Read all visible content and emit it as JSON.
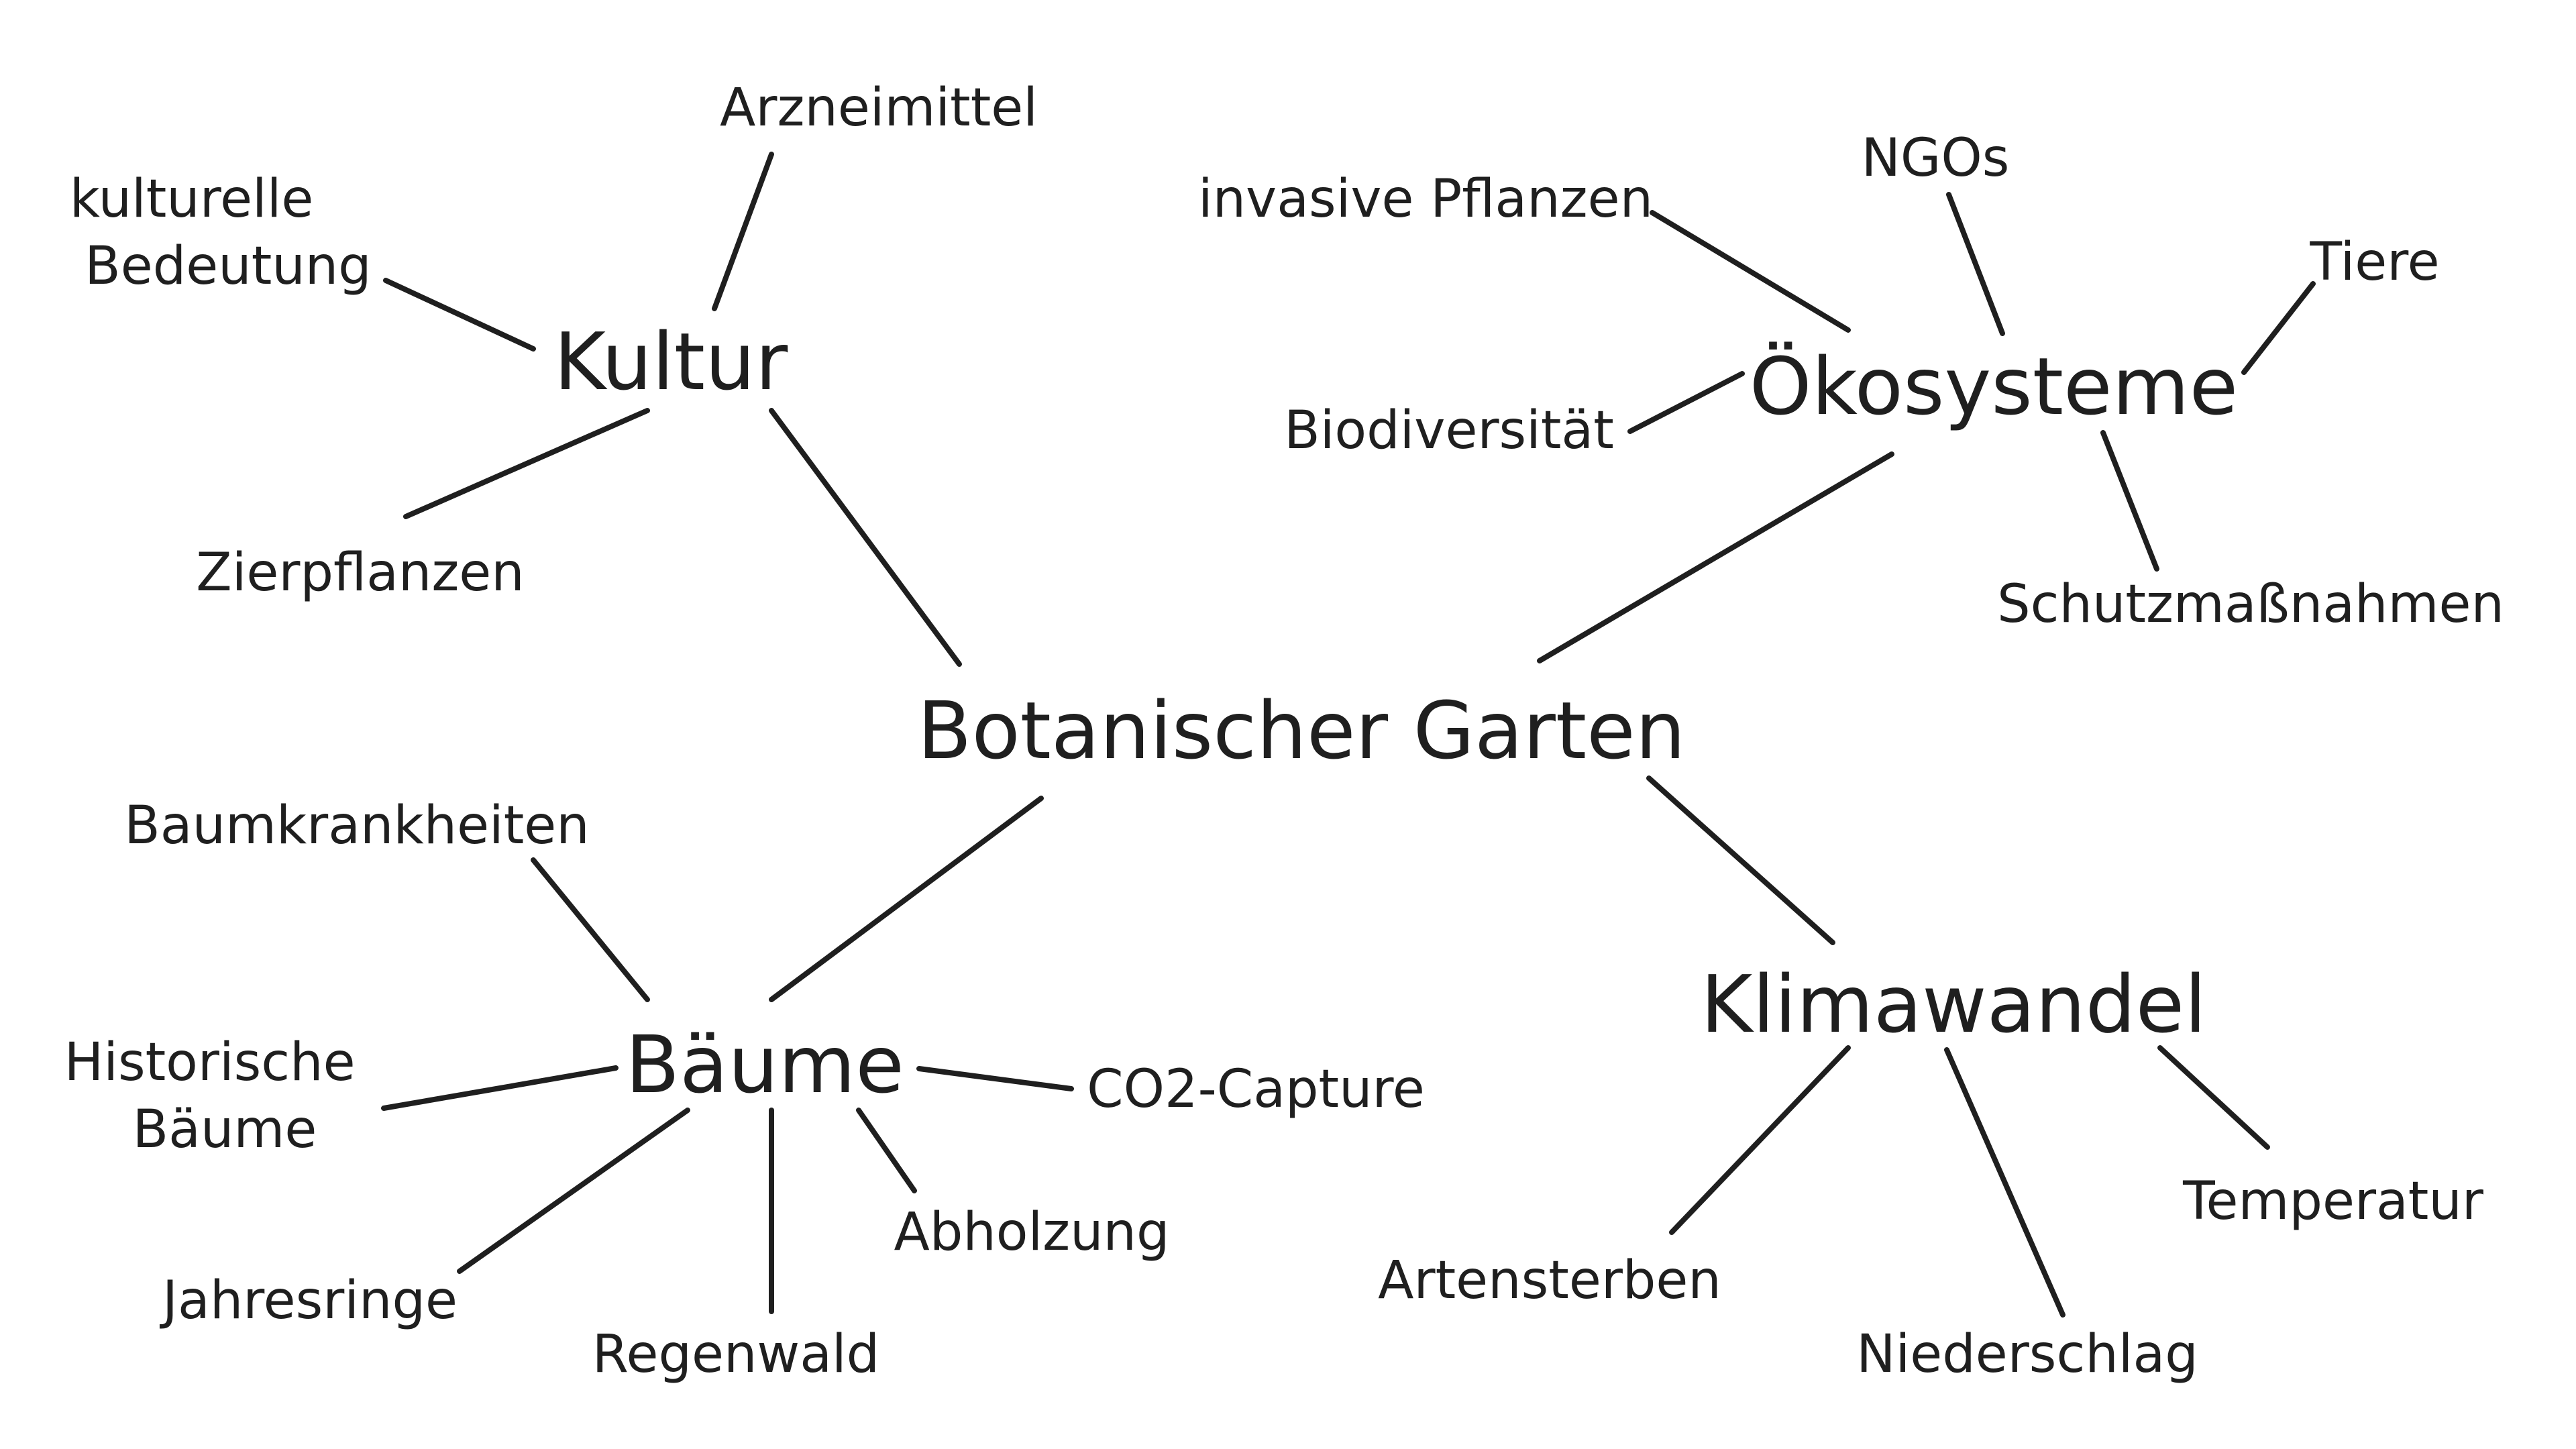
{
  "center": "Botanischer Garten",
  "topics": {
    "kultur": {
      "label": "Kultur",
      "leaves": {
        "arzneimittel": "Arzneimittel",
        "kulturelle_bedeutung": [
          "kulturelle",
          "Bedeutung"
        ],
        "zierpflanzen": "Zierpflanzen"
      }
    },
    "oekosysteme": {
      "label": "Ökosysteme",
      "leaves": {
        "invasive_pflanzen": "invasive Pflanzen",
        "ngos": "NGOs",
        "tiere": "Tiere",
        "biodiversitaet": "Biodiversität",
        "schutzmassnahmen": "Schutzmaßnahmen"
      }
    },
    "baeume": {
      "label": "Bäume",
      "leaves": {
        "baumkrankheiten": "Baumkrankheiten",
        "historische_baeume": [
          "Historische",
          "Bäume"
        ],
        "co2_capture": "CO2-Capture",
        "jahresringe": "Jahresringe",
        "regenwald": "Regenwald",
        "abholzung": "Abholzung"
      }
    },
    "klimawandel": {
      "label": "Klimawandel",
      "leaves": {
        "artensterben": "Artensterben",
        "niederschlag": "Niederschlag",
        "temperatur": "Temperatur"
      }
    }
  },
  "colors": {
    "ink": "#1f1f1f",
    "background": "#ffffff"
  }
}
